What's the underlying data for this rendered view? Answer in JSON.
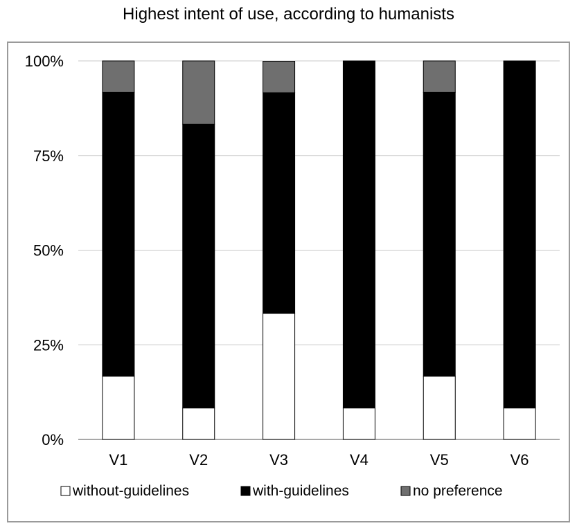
{
  "chart_data": {
    "type": "bar",
    "stacked": true,
    "title": "Highest intent of use, according to humanists",
    "categories": [
      "V1",
      "V2",
      "V3",
      "V4",
      "V5",
      "V6"
    ],
    "series": [
      {
        "name": "without-guidelines",
        "color": "#ffffff",
        "values": [
          16.7,
          8.3,
          33.3,
          8.3,
          16.7,
          8.3
        ]
      },
      {
        "name": "with-guidelines",
        "color": "#000000",
        "values": [
          75,
          75,
          58.3,
          91.7,
          75,
          91.7
        ]
      },
      {
        "name": "no preference",
        "color": "#6f6f6f",
        "values": [
          8.3,
          16.7,
          8.3,
          0,
          8.3,
          0
        ]
      }
    ],
    "yticks": [
      "0%",
      "25%",
      "50%",
      "75%",
      "100%"
    ],
    "ylim": [
      0,
      100
    ],
    "grid": true,
    "legend": "bottom"
  }
}
